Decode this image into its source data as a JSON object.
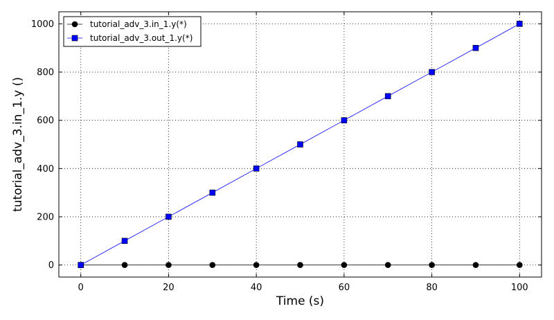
{
  "chart_data": {
    "type": "line",
    "xlabel": "Time (s)",
    "ylabel": "tutorial_adv_3.in_1.y ()",
    "xlim": [
      -5,
      105
    ],
    "ylim": [
      -50,
      1050
    ],
    "x_ticks": [
      0,
      20,
      40,
      60,
      80,
      100
    ],
    "x_tick_labels": [
      "0",
      "20",
      "40",
      "60",
      "80",
      "100"
    ],
    "y_ticks": [
      0,
      200,
      400,
      600,
      800,
      1000
    ],
    "y_tick_labels": [
      "0",
      "200",
      "400",
      "600",
      "800",
      "1000"
    ],
    "grid": true,
    "legend_position": "top-left",
    "x": [
      0,
      10,
      20,
      30,
      40,
      50,
      60,
      70,
      80,
      90,
      100
    ],
    "series": [
      {
        "name": "tutorial_adv_3.in_1.y(*)",
        "color": "#000000",
        "marker": "circle",
        "values": [
          0,
          0,
          0,
          0,
          0,
          0,
          0,
          0,
          0,
          0,
          0
        ]
      },
      {
        "name": "tutorial_adv_3.out_1.y(*)",
        "color": "#0000ff",
        "marker": "square",
        "values": [
          0,
          100,
          200,
          300,
          400,
          500,
          600,
          700,
          800,
          900,
          1000
        ]
      }
    ]
  }
}
